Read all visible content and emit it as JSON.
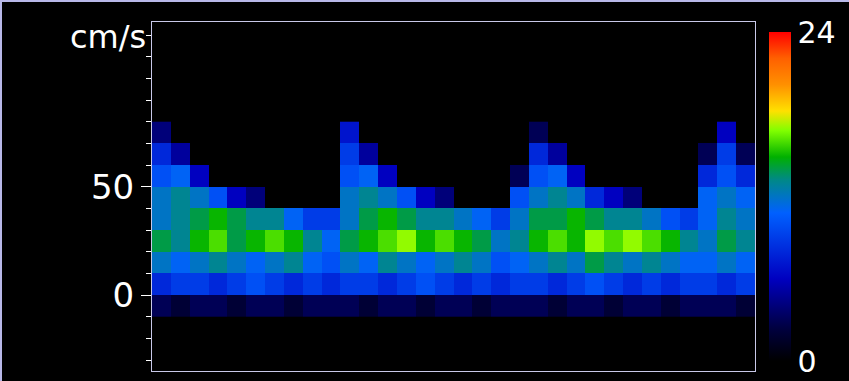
{
  "chart_data": {
    "type": "heatmap",
    "y_label": "cm/s",
    "x": [
      0,
      1,
      2,
      3,
      4,
      5,
      6,
      7,
      8,
      9,
      10,
      11,
      12,
      13,
      14,
      15,
      16,
      17,
      18,
      19,
      20,
      21,
      22,
      23,
      24,
      25,
      26,
      27,
      28,
      29,
      30,
      31
    ],
    "xlim": [
      -0.5,
      31.5
    ],
    "y": [
      -5,
      5,
      15,
      25,
      35,
      45,
      55,
      65,
      75
    ],
    "ylim": [
      -35,
      126
    ],
    "yticks": [
      0,
      50
    ],
    "tick_labels": "y",
    "grid": false,
    "z": [
      [
        3,
        2,
        3,
        3,
        2,
        3,
        3,
        2,
        3,
        3,
        3,
        2,
        3,
        3,
        2,
        3,
        3,
        2,
        3,
        3,
        3,
        2,
        3,
        3,
        2,
        3,
        3,
        2,
        3,
        3,
        3,
        2
      ],
      [
        8,
        9,
        9,
        8,
        9,
        10,
        9,
        8,
        9,
        8,
        9,
        9,
        8,
        9,
        10,
        9,
        8,
        9,
        8,
        9,
        9,
        8,
        9,
        10,
        9,
        8,
        9,
        8,
        9,
        9,
        8,
        9
      ],
      [
        12,
        11,
        12,
        13,
        12,
        11,
        12,
        13,
        11,
        10,
        12,
        11,
        13,
        12,
        11,
        12,
        13,
        12,
        10,
        11,
        12,
        13,
        12,
        14,
        13,
        12,
        13,
        12,
        11,
        11,
        12,
        11
      ],
      [
        14,
        13,
        15,
        16,
        14,
        15,
        16,
        15,
        13,
        11,
        14,
        15,
        16,
        17,
        15,
        16,
        15,
        14,
        12,
        13,
        15,
        16,
        15,
        17,
        16,
        17,
        16,
        15,
        13,
        12,
        14,
        13
      ],
      [
        12,
        13,
        14,
        15,
        14,
        13,
        13,
        11,
        9,
        9,
        12,
        14,
        15,
        14,
        13,
        13,
        12,
        11,
        9,
        12,
        14,
        14,
        15,
        14,
        13,
        13,
        12,
        10,
        9,
        11,
        13,
        12
      ],
      [
        12,
        13,
        12,
        10,
        6,
        4,
        null,
        null,
        null,
        null,
        12,
        13,
        12,
        10,
        6,
        4,
        null,
        null,
        null,
        10,
        12,
        13,
        12,
        8,
        6,
        4,
        null,
        null,
        null,
        11,
        12,
        11
      ],
      [
        10,
        11,
        6,
        null,
        null,
        null,
        null,
        null,
        null,
        null,
        10,
        11,
        6,
        null,
        null,
        null,
        null,
        null,
        null,
        3,
        10,
        11,
        6,
        null,
        null,
        null,
        null,
        null,
        null,
        8,
        10,
        8
      ],
      [
        8,
        5,
        null,
        null,
        null,
        null,
        null,
        null,
        null,
        null,
        9,
        5,
        null,
        null,
        null,
        null,
        null,
        null,
        null,
        null,
        8,
        5,
        null,
        null,
        null,
        null,
        null,
        null,
        null,
        3,
        9,
        3
      ],
      [
        4,
        null,
        null,
        null,
        null,
        null,
        null,
        null,
        null,
        null,
        7,
        null,
        null,
        null,
        null,
        null,
        null,
        null,
        null,
        null,
        3,
        null,
        null,
        null,
        null,
        null,
        null,
        null,
        null,
        null,
        6,
        null
      ]
    ],
    "colorbar_range": [
      0,
      24
    ],
    "colorbar_ticks": [
      0,
      24
    ]
  }
}
